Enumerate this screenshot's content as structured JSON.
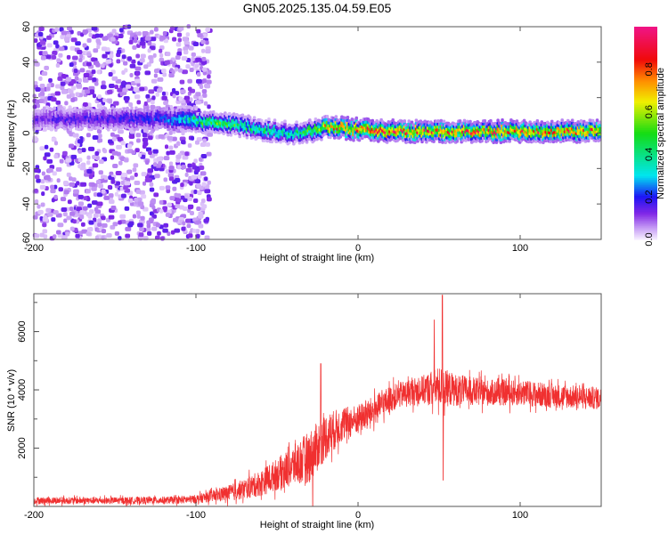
{
  "chart_data": [
    {
      "type": "heatmap",
      "title": "GN05.2025.135.04.59.E05",
      "xlabel": "Height of straight line (km)",
      "ylabel": "Frequency (Hz)",
      "xlim": [
        -200,
        150
      ],
      "ylim": [
        -60,
        60
      ],
      "xticks": [
        "-200",
        "-100",
        "0",
        "100"
      ],
      "xtick_values": [
        -200,
        -100,
        0,
        100
      ],
      "yticks": [
        "60",
        "40",
        "20",
        "0",
        "-20",
        "-40",
        "-60"
      ],
      "ytick_values": [
        60,
        40,
        20,
        0,
        -20,
        -40,
        -60
      ],
      "colorbar": {
        "label": "Normalized spectral amplitude",
        "range": [
          0,
          1
        ],
        "ticks": [
          "0.0",
          "0.2",
          "0.4",
          "0.6",
          "0.8"
        ],
        "tick_values": [
          0,
          0.2,
          0.4,
          0.6,
          0.8
        ]
      },
      "ridge": {
        "x": [
          -200,
          -150,
          -120,
          -110,
          -100,
          -90,
          -80,
          -70,
          -60,
          -50,
          -40,
          -30,
          -20,
          -10,
          0,
          20,
          50,
          100,
          150
        ],
        "frequency": [
          8,
          8,
          8,
          7,
          7,
          6,
          5,
          4,
          2,
          1,
          0,
          1,
          3,
          3,
          2,
          1,
          1,
          1,
          1
        ],
        "amplitude": [
          0.15,
          0.18,
          0.22,
          0.3,
          0.45,
          0.5,
          0.5,
          0.45,
          0.45,
          0.42,
          0.4,
          0.5,
          0.7,
          0.8,
          0.85,
          0.85,
          0.8,
          0.82,
          0.8
        ]
      },
      "noise_region": {
        "x_range": [
          -200,
          -100
        ],
        "amplitude": 0.15
      }
    },
    {
      "type": "line",
      "xlabel": "Height of straight line (km)",
      "ylabel": "SNR (10 * v/v)",
      "xlim": [
        -200,
        150
      ],
      "ylim": [
        0,
        7300
      ],
      "xticks": [
        "-200",
        "-100",
        "0",
        "100"
      ],
      "xtick_values": [
        -200,
        -100,
        0,
        100
      ],
      "yticks": [
        "2000",
        "4000",
        "6000"
      ],
      "ytick_values": [
        2000,
        4000,
        6000
      ],
      "color": "#f03030",
      "envelope": {
        "x": [
          -200,
          -150,
          -110,
          -100,
          -90,
          -80,
          -70,
          -60,
          -50,
          -40,
          -30,
          -20,
          -10,
          0,
          10,
          20,
          30,
          40,
          50,
          60,
          80,
          100,
          120,
          150
        ],
        "snr": [
          200,
          200,
          220,
          250,
          350,
          450,
          600,
          800,
          1100,
          1400,
          1700,
          2400,
          2800,
          3000,
          3300,
          3700,
          3900,
          4000,
          4100,
          4000,
          3900,
          3900,
          3800,
          3700
        ],
        "noise": [
          120,
          120,
          130,
          150,
          200,
          280,
          350,
          450,
          550,
          700,
          900,
          800,
          600,
          500,
          500,
          450,
          450,
          500,
          700,
          550,
          450,
          450,
          420,
          380
        ]
      },
      "spikes": [
        {
          "x": -23,
          "snr": 4900
        },
        {
          "x": -28,
          "snr": 0
        },
        {
          "x": 52,
          "snr": 7250
        },
        {
          "x": 52.5,
          "snr": 900
        },
        {
          "x": 47,
          "snr": 6400
        }
      ]
    }
  ]
}
